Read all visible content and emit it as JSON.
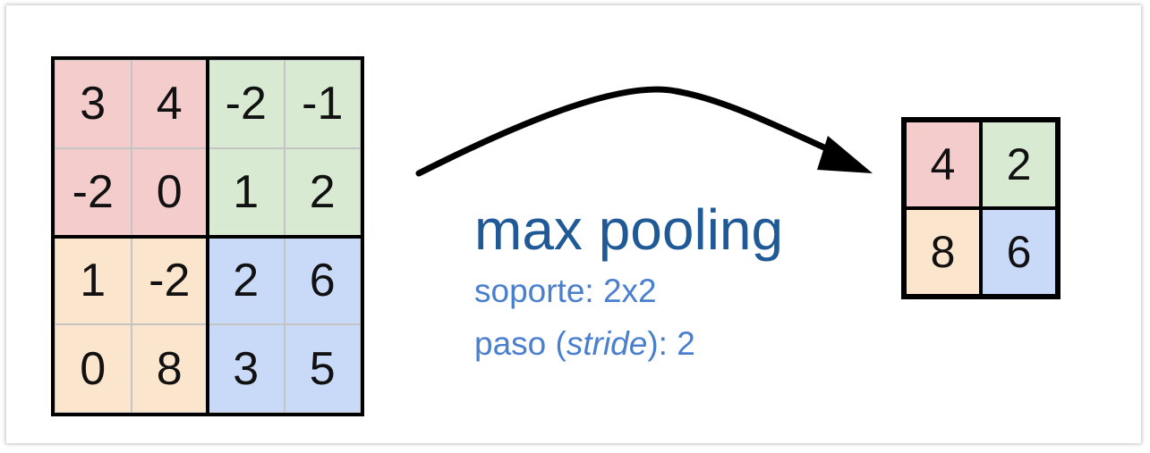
{
  "colors": {
    "red": "#f4cccc",
    "green": "#d9ead3",
    "orange": "#fce5cd",
    "blue": "#c9daf8",
    "title": "#1f5a96",
    "subtitle": "#4a7fd0"
  },
  "input": {
    "cells": [
      [
        {
          "v": "3",
          "c": "red"
        },
        {
          "v": "4",
          "c": "red"
        },
        {
          "v": "-2",
          "c": "green"
        },
        {
          "v": "-1",
          "c": "green"
        }
      ],
      [
        {
          "v": "-2",
          "c": "red"
        },
        {
          "v": "0",
          "c": "red"
        },
        {
          "v": "1",
          "c": "green"
        },
        {
          "v": "2",
          "c": "green"
        }
      ],
      [
        {
          "v": "1",
          "c": "orange"
        },
        {
          "v": "-2",
          "c": "orange"
        },
        {
          "v": "2",
          "c": "blue"
        },
        {
          "v": "6",
          "c": "blue"
        }
      ],
      [
        {
          "v": "0",
          "c": "orange"
        },
        {
          "v": "8",
          "c": "orange"
        },
        {
          "v": "3",
          "c": "blue"
        },
        {
          "v": "5",
          "c": "blue"
        }
      ]
    ]
  },
  "output": {
    "cells": [
      [
        {
          "v": "4",
          "c": "red"
        },
        {
          "v": "2",
          "c": "green"
        }
      ],
      [
        {
          "v": "8",
          "c": "orange"
        },
        {
          "v": "6",
          "c": "blue"
        }
      ]
    ]
  },
  "label": {
    "title": "max pooling",
    "support": "soporte: 2x2",
    "stride_prefix": "paso (",
    "stride_word": "stride",
    "stride_suffix": "): 2"
  }
}
